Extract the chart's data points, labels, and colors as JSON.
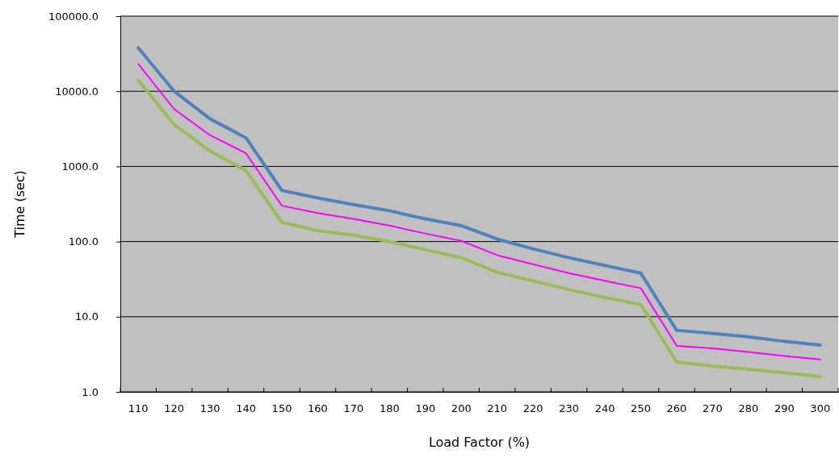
{
  "chart_data": {
    "type": "line",
    "xlabel": "Load Factor (%)",
    "ylabel": "Time (sec)",
    "categories": [
      "110",
      "120",
      "130",
      "140",
      "150",
      "160",
      "170",
      "180",
      "190",
      "200",
      "210",
      "220",
      "230",
      "240",
      "250",
      "260",
      "270",
      "280",
      "290",
      "300"
    ],
    "series": [
      {
        "color": "#4f81bd",
        "values": [
          38000,
          10000,
          4300,
          2400,
          480,
          380,
          310,
          257,
          200,
          163,
          108,
          80,
          61,
          48,
          38,
          6.6,
          6.0,
          5.4,
          4.7,
          4.2
        ]
      },
      {
        "color": "#ff00ff",
        "values": [
          23000,
          5800,
          2600,
          1500,
          300,
          240,
          200,
          163,
          128,
          102,
          66,
          50,
          38,
          30,
          24,
          4.1,
          3.8,
          3.4,
          3.0,
          2.7
        ]
      },
      {
        "color": "#9bbb59",
        "values": [
          14000,
          3600,
          1600,
          880,
          180,
          140,
          122,
          100,
          78,
          61,
          39,
          30,
          23,
          18,
          14.5,
          2.5,
          2.2,
          2.0,
          1.8,
          1.6
        ]
      }
    ],
    "log": true,
    "ylim": [
      1,
      100000
    ],
    "yticks": [
      {
        "value": 1,
        "label": "1.0"
      },
      {
        "value": 10,
        "label": "10.0"
      },
      {
        "value": 100,
        "label": "100.0"
      },
      {
        "value": 1000,
        "label": "1000.0"
      },
      {
        "value": 10000,
        "label": "10000.0"
      },
      {
        "value": 100000,
        "label": "100000.0"
      }
    ],
    "grid": "y",
    "marker": "none",
    "line_style": "solid"
  }
}
